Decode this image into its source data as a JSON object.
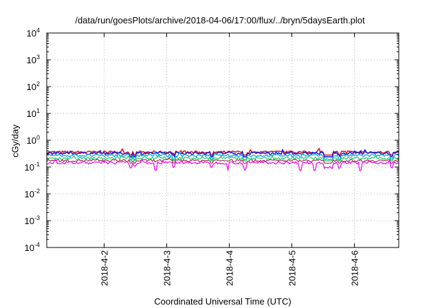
{
  "chart_data": {
    "type": "line",
    "title": "/data/run/goesPlots/archive/2018-04-06/17:00/flux/../bryn/5daysEarth.plot",
    "xlabel": "Coordinated Universal Time (UTC)",
    "ylabel": "cGy/day",
    "yscale": "log",
    "ylim": [
      0.0001,
      10000
    ],
    "xlim": [
      "2018-04-01 02:00",
      "2018-04-06 17:00"
    ],
    "y_ticks": [
      {
        "value": 0.0001,
        "base": "10",
        "exp": "-4"
      },
      {
        "value": 0.001,
        "base": "10",
        "exp": "-3"
      },
      {
        "value": 0.01,
        "base": "10",
        "exp": "-2"
      },
      {
        "value": 0.1,
        "base": "10",
        "exp": "-1"
      },
      {
        "value": 1,
        "base": "10",
        "exp": "0"
      },
      {
        "value": 10,
        "base": "10",
        "exp": "1"
      },
      {
        "value": 100,
        "base": "10",
        "exp": "2"
      },
      {
        "value": 1000,
        "base": "10",
        "exp": "3"
      },
      {
        "value": 10000,
        "base": "10",
        "exp": "4"
      }
    ],
    "x_ticks": [
      "2018-4-2",
      "2018-4-3",
      "2018-4-4",
      "2018-4-5",
      "2018-4-6"
    ],
    "grid": true,
    "legend": "none",
    "series": [
      {
        "color": "#e8141c",
        "baseline": 0.36,
        "min": 0.28,
        "max": 0.5,
        "width": 1.6
      },
      {
        "color": "#1c1cd8",
        "baseline": 0.33,
        "min": 0.24,
        "max": 0.45,
        "width": 1.6
      },
      {
        "color": "#18a8e8",
        "baseline": 0.27,
        "min": 0.19,
        "max": 0.38,
        "width": 1.4
      },
      {
        "color": "#20c860",
        "baseline": 0.215,
        "min": 0.17,
        "max": 0.27,
        "width": 1.2
      },
      {
        "color": "#a03050",
        "baseline": 0.175,
        "min": 0.14,
        "max": 0.22,
        "width": 1.2
      },
      {
        "color": "#ee10ee",
        "baseline": 0.145,
        "min": 0.075,
        "max": 0.19,
        "width": 1.3
      }
    ]
  }
}
